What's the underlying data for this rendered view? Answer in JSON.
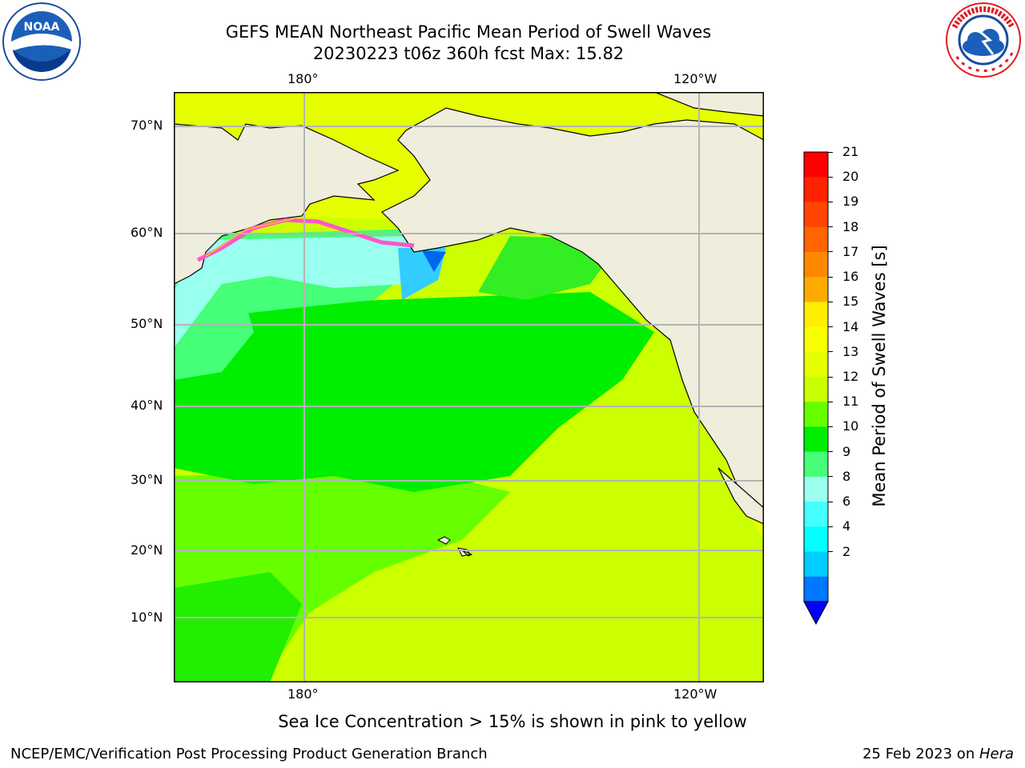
{
  "title_line1": "GEFS MEAN Northeast Pacific Mean Period of Swell Waves",
  "title_line2": "20230223 t06z 360h fcst   Max: 15.82",
  "lon_ticks": [
    "180°",
    "120°W"
  ],
  "lat_ticks": [
    "70°N",
    "60°N",
    "50°N",
    "40°N",
    "30°N",
    "20°N",
    "10°N"
  ],
  "colorbar": {
    "label": "Mean Period of Swell Waves [s]",
    "ticks": [
      "21",
      "20",
      "19",
      "18",
      "17",
      "16",
      "15",
      "14",
      "13",
      "12",
      "11",
      "10",
      "9",
      "8",
      "6",
      "4",
      "2"
    ],
    "colors": [
      "#ff0000",
      "#ff2200",
      "#ff4400",
      "#ff6600",
      "#ff8800",
      "#ffaa00",
      "#ffee00",
      "#f8ff00",
      "#e6ff00",
      "#c8ff00",
      "#66ff00",
      "#00ee00",
      "#44ff77",
      "#99ffee",
      "#44ffff",
      "#00ffff",
      "#00ccff",
      "#0077ff",
      "#0000ff"
    ]
  },
  "note": "Sea Ice Concentration > 15% is shown in pink to yellow",
  "footer_left": "NCEP/EMC/Verification Post Processing Product Generation Branch",
  "footer_right_date": "25 Feb 2023 on ",
  "footer_right_machine": "Hera",
  "logos": {
    "noaa": "NOAA",
    "nws": "NATIONAL WEATHER SERVICE"
  },
  "colors": {
    "land": "#efeddc",
    "grid": "#b4b4b4"
  }
}
